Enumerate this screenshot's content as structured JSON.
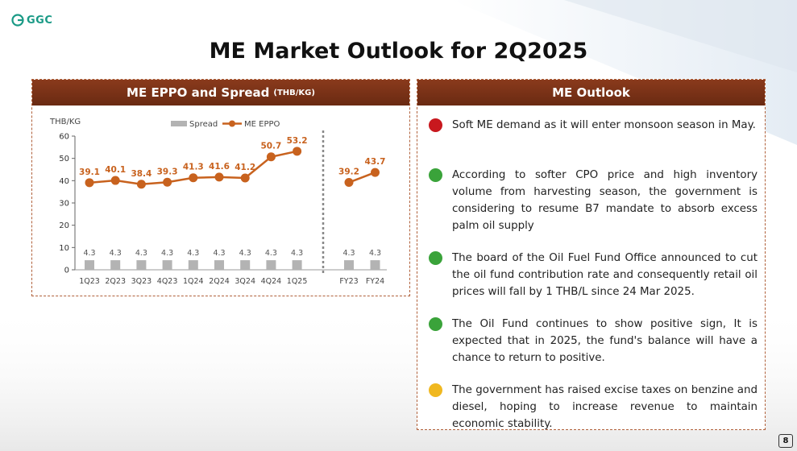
{
  "logo": {
    "text": "GGC"
  },
  "page": {
    "title": "ME Market Outlook for 2Q2025",
    "number": "8"
  },
  "left_panel": {
    "title": "ME EPPO and Spread",
    "unit": "(THB/KG)"
  },
  "right_panel": {
    "title": "ME Outlook",
    "items": [
      {
        "color": "#c8181e",
        "text": "Soft ME demand as it will enter monsoon season in May."
      },
      {
        "color": "#3aa33a",
        "text": "According to softer CPO price and high inventory volume from harvesting season, the government is considering to resume B7 mandate to absorb excess palm oil supply"
      },
      {
        "color": "#3aa33a",
        "text": "The board of the Oil Fuel Fund Office announced to cut the oil fund contribution rate and consequently retail oil prices will fall by 1 THB/L since 24 Mar 2025."
      },
      {
        "color": "#3aa33a",
        "text": "The Oil Fund continues to show positive sign, It is expected that in 2025, the fund's balance will have a chance to return to positive."
      },
      {
        "color": "#f0b820",
        "text": "The government has raised excise taxes on benzine and diesel, hoping to increase revenue to maintain economic stability."
      }
    ]
  },
  "chart_data": {
    "type": "bar+line",
    "ylabel": "THB/KG",
    "ylim": [
      0,
      60
    ],
    "yticks": [
      0,
      10,
      20,
      30,
      40,
      50,
      60
    ],
    "legend_position": "top-center",
    "groups": [
      {
        "categories": [
          "1Q23",
          "2Q23",
          "3Q23",
          "4Q23",
          "1Q24",
          "2Q24",
          "3Q24",
          "4Q24",
          "1Q25"
        ],
        "spread": [
          4.3,
          4.3,
          4.3,
          4.3,
          4.3,
          4.3,
          4.3,
          4.3,
          4.3
        ],
        "me_eppo": [
          39.1,
          40.1,
          38.4,
          39.3,
          41.3,
          41.6,
          41.2,
          50.7,
          53.2
        ]
      },
      {
        "categories": [
          "FY23",
          "FY24"
        ],
        "spread": [
          4.3,
          4.3
        ],
        "me_eppo": [
          39.2,
          43.7
        ]
      }
    ],
    "series": [
      {
        "name": "Spread",
        "type": "bar",
        "color": "#b3b3b3"
      },
      {
        "name": "ME EPPO",
        "type": "line",
        "color": "#c8621e"
      }
    ]
  }
}
